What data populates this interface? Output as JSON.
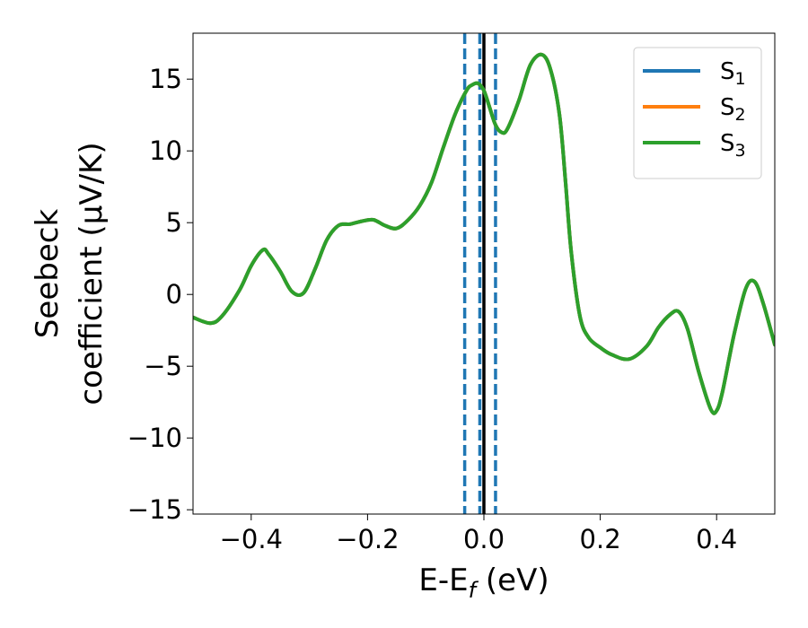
{
  "chart_data": {
    "type": "line",
    "xlabel": {
      "main": "E-E",
      "sub": "f",
      "tail": " (eV)"
    },
    "ylabel": {
      "line1": "Seebeck",
      "line2": "coefficient  (μV/K)"
    },
    "xlim": [
      -0.5,
      0.5
    ],
    "ylim": [
      -15.3,
      18.2
    ],
    "xticks": [
      -0.4,
      -0.2,
      0.0,
      0.2,
      0.4
    ],
    "xtick_labels": [
      "−0.4",
      "−0.2",
      "0.0",
      "0.2",
      "0.4"
    ],
    "yticks": [
      -15,
      -10,
      -5,
      0,
      5,
      10,
      15
    ],
    "ytick_labels": [
      "−15",
      "−10",
      "−5",
      "0",
      "5",
      "10",
      "15"
    ],
    "grid": false,
    "legend_position": "top-right",
    "vertical_lines": [
      {
        "x": -0.033,
        "style": "dashed",
        "color": "#1f77b4"
      },
      {
        "x": -0.007,
        "style": "dashed",
        "color": "#1f77b4"
      },
      {
        "x": 0.02,
        "style": "dashed",
        "color": "#1f77b4"
      },
      {
        "x": 0.0,
        "style": "solid",
        "color": "#000000"
      }
    ],
    "x": [
      -0.5,
      -0.47,
      -0.45,
      -0.42,
      -0.4,
      -0.38,
      -0.37,
      -0.35,
      -0.33,
      -0.31,
      -0.29,
      -0.27,
      -0.25,
      -0.23,
      -0.21,
      -0.19,
      -0.17,
      -0.15,
      -0.13,
      -0.11,
      -0.09,
      -0.07,
      -0.05,
      -0.03,
      -0.02,
      -0.01,
      0.0,
      0.01,
      0.02,
      0.03,
      0.04,
      0.06,
      0.08,
      0.1,
      0.115,
      0.13,
      0.14,
      0.15,
      0.165,
      0.18,
      0.2,
      0.22,
      0.25,
      0.28,
      0.3,
      0.32,
      0.335,
      0.35,
      0.37,
      0.39,
      0.4,
      0.41,
      0.43,
      0.45,
      0.465,
      0.48,
      0.5
    ],
    "series": [
      {
        "name": "S",
        "sub": "1",
        "color": "#1f77b4",
        "values": [
          -1.6,
          -2.0,
          -1.5,
          0.3,
          2.0,
          3.1,
          2.8,
          1.6,
          0.2,
          0.1,
          1.8,
          3.8,
          4.8,
          4.9,
          5.1,
          5.2,
          4.8,
          4.6,
          5.2,
          6.2,
          7.8,
          10.2,
          12.5,
          14.2,
          14.6,
          14.7,
          14.2,
          13.0,
          11.8,
          11.3,
          11.5,
          13.5,
          16.0,
          16.7,
          15.6,
          12.5,
          8.0,
          3.0,
          -1.5,
          -3.0,
          -3.7,
          -4.2,
          -4.5,
          -3.6,
          -2.3,
          -1.4,
          -1.2,
          -2.4,
          -5.5,
          -8.0,
          -8.1,
          -6.8,
          -2.8,
          0.4,
          0.9,
          -0.6,
          -3.5
        ]
      },
      {
        "name": "S",
        "sub": "2",
        "color": "#ff7f0e",
        "values": [
          -1.6,
          -2.0,
          -1.5,
          0.3,
          2.0,
          3.1,
          2.8,
          1.6,
          0.2,
          0.1,
          1.8,
          3.8,
          4.8,
          4.9,
          5.1,
          5.2,
          4.8,
          4.6,
          5.2,
          6.2,
          7.8,
          10.2,
          12.5,
          14.2,
          14.6,
          14.7,
          14.2,
          13.0,
          11.8,
          11.3,
          11.5,
          13.5,
          16.0,
          16.7,
          15.6,
          12.5,
          8.0,
          3.0,
          -1.5,
          -3.0,
          -3.7,
          -4.2,
          -4.5,
          -3.6,
          -2.3,
          -1.4,
          -1.2,
          -2.4,
          -5.5,
          -8.0,
          -8.1,
          -6.8,
          -2.8,
          0.4,
          0.9,
          -0.6,
          -3.5
        ]
      },
      {
        "name": "S",
        "sub": "3",
        "color": "#2ca02c",
        "values": [
          -1.6,
          -2.0,
          -1.5,
          0.3,
          2.0,
          3.1,
          2.8,
          1.6,
          0.2,
          0.1,
          1.8,
          3.8,
          4.8,
          4.9,
          5.1,
          5.2,
          4.8,
          4.6,
          5.2,
          6.2,
          7.8,
          10.2,
          12.5,
          14.2,
          14.6,
          14.7,
          14.2,
          13.0,
          11.8,
          11.3,
          11.5,
          13.5,
          16.0,
          16.7,
          15.6,
          12.5,
          8.0,
          3.0,
          -1.5,
          -3.0,
          -3.7,
          -4.2,
          -4.5,
          -3.6,
          -2.3,
          -1.4,
          -1.2,
          -2.4,
          -5.5,
          -8.0,
          -8.1,
          -6.8,
          -2.8,
          0.4,
          0.9,
          -0.6,
          -3.5
        ]
      }
    ]
  }
}
